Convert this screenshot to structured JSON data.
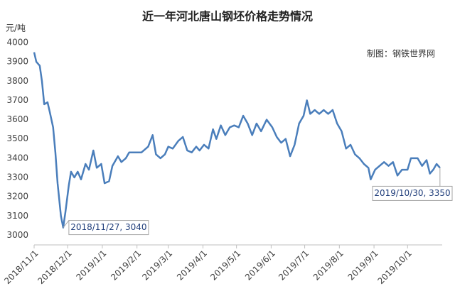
{
  "chart_data": {
    "type": "line",
    "title": "近一年河北唐山钢坯价格走势情况",
    "y_label": "元/吨",
    "source": "制图：钢铁世界网",
    "color": "#4a7ebb",
    "grid": false,
    "xlim": [
      "2018/11/1",
      "2019/11/1"
    ],
    "xticks": [
      "2018/11/1",
      "2018/12/1",
      "2019/1/1",
      "2019/2/1",
      "2019/3/1",
      "2019/4/1",
      "2019/5/1",
      "2019/6/1",
      "2019/7/1",
      "2019/8/1",
      "2019/9/1",
      "2019/10/1"
    ],
    "ylim": [
      2950,
      4000
    ],
    "yticks": [
      3000,
      3100,
      3200,
      3300,
      3400,
      3500,
      3600,
      3700,
      3800,
      3900,
      4000
    ],
    "x": [
      "2018/11/1",
      "2018/11/3",
      "2018/11/6",
      "2018/11/8",
      "2018/11/10",
      "2018/11/13",
      "2018/11/15",
      "2018/11/18",
      "2018/11/20",
      "2018/11/22",
      "2018/11/25",
      "2018/11/27",
      "2018/11/29",
      "2018/12/2",
      "2018/12/4",
      "2018/12/7",
      "2018/12/10",
      "2018/12/13",
      "2018/12/17",
      "2018/12/20",
      "2018/12/24",
      "2018/12/27",
      "2018/12/31",
      "2019/1/3",
      "2019/1/7",
      "2019/1/10",
      "2019/1/15",
      "2019/1/18",
      "2019/1/22",
      "2019/1/25",
      "2019/1/30",
      "2019/2/5",
      "2019/2/11",
      "2019/2/15",
      "2019/2/18",
      "2019/2/22",
      "2019/2/26",
      "2019/3/1",
      "2019/3/5",
      "2019/3/10",
      "2019/3/14",
      "2019/3/18",
      "2019/3/22",
      "2019/3/26",
      "2019/3/29",
      "2019/4/2",
      "2019/4/6",
      "2019/4/10",
      "2019/4/13",
      "2019/4/17",
      "2019/4/21",
      "2019/4/25",
      "2019/4/29",
      "2019/5/3",
      "2019/5/7",
      "2019/5/11",
      "2019/5/15",
      "2019/5/19",
      "2019/5/23",
      "2019/5/28",
      "2019/6/2",
      "2019/6/6",
      "2019/6/10",
      "2019/6/14",
      "2019/6/18",
      "2019/6/22",
      "2019/6/26",
      "2019/6/30",
      "2019/7/3",
      "2019/7/6",
      "2019/7/10",
      "2019/7/14",
      "2019/7/18",
      "2019/7/22",
      "2019/7/26",
      "2019/7/30",
      "2019/8/3",
      "2019/8/7",
      "2019/8/11",
      "2019/8/15",
      "2019/8/19",
      "2019/8/23",
      "2019/8/27",
      "2019/8/29",
      "2019/9/2",
      "2019/9/6",
      "2019/9/10",
      "2019/9/14",
      "2019/9/18",
      "2019/9/22",
      "2019/9/26",
      "2019/10/1",
      "2019/10/4",
      "2019/10/10",
      "2019/10/14",
      "2019/10/18",
      "2019/10/21",
      "2019/10/24",
      "2019/10/27",
      "2019/10/30"
    ],
    "values": [
      3950,
      3900,
      3880,
      3800,
      3680,
      3690,
      3640,
      3560,
      3430,
      3270,
      3100,
      3040,
      3120,
      3260,
      3330,
      3300,
      3330,
      3290,
      3370,
      3340,
      3440,
      3350,
      3370,
      3270,
      3280,
      3360,
      3410,
      3380,
      3400,
      3430,
      3430,
      3430,
      3460,
      3520,
      3420,
      3400,
      3420,
      3460,
      3450,
      3490,
      3510,
      3440,
      3430,
      3460,
      3440,
      3470,
      3450,
      3550,
      3500,
      3570,
      3520,
      3560,
      3570,
      3560,
      3620,
      3580,
      3520,
      3580,
      3540,
      3600,
      3560,
      3510,
      3480,
      3500,
      3410,
      3470,
      3580,
      3620,
      3700,
      3630,
      3650,
      3630,
      3650,
      3630,
      3650,
      3580,
      3540,
      3450,
      3470,
      3420,
      3400,
      3370,
      3350,
      3290,
      3340,
      3360,
      3380,
      3360,
      3380,
      3310,
      3340,
      3340,
      3400,
      3400,
      3360,
      3390,
      3320,
      3340,
      3370,
      3350
    ],
    "value_labels": [
      null,
      null,
      null,
      null,
      null,
      null,
      null,
      null,
      null,
      null,
      null,
      "2018/11/27, 3040",
      null,
      null,
      null,
      null,
      null,
      null,
      null,
      null,
      null,
      null,
      null,
      null,
      null,
      null,
      null,
      null,
      null,
      null,
      null,
      null,
      null,
      null,
      null,
      null,
      null,
      null,
      null,
      null,
      null,
      null,
      null,
      null,
      null,
      null,
      null,
      null,
      null,
      null,
      null,
      null,
      null,
      null,
      null,
      null,
      null,
      null,
      null,
      null,
      null,
      null,
      null,
      null,
      null,
      null,
      null,
      null,
      null,
      null,
      null,
      null,
      null,
      null,
      null,
      null,
      null,
      null,
      null,
      null,
      null,
      null,
      null,
      null,
      null,
      null,
      null,
      null,
      null,
      null,
      null,
      null,
      null,
      null,
      null,
      null,
      null,
      null,
      null,
      "2019/10/30, 3350"
    ]
  }
}
